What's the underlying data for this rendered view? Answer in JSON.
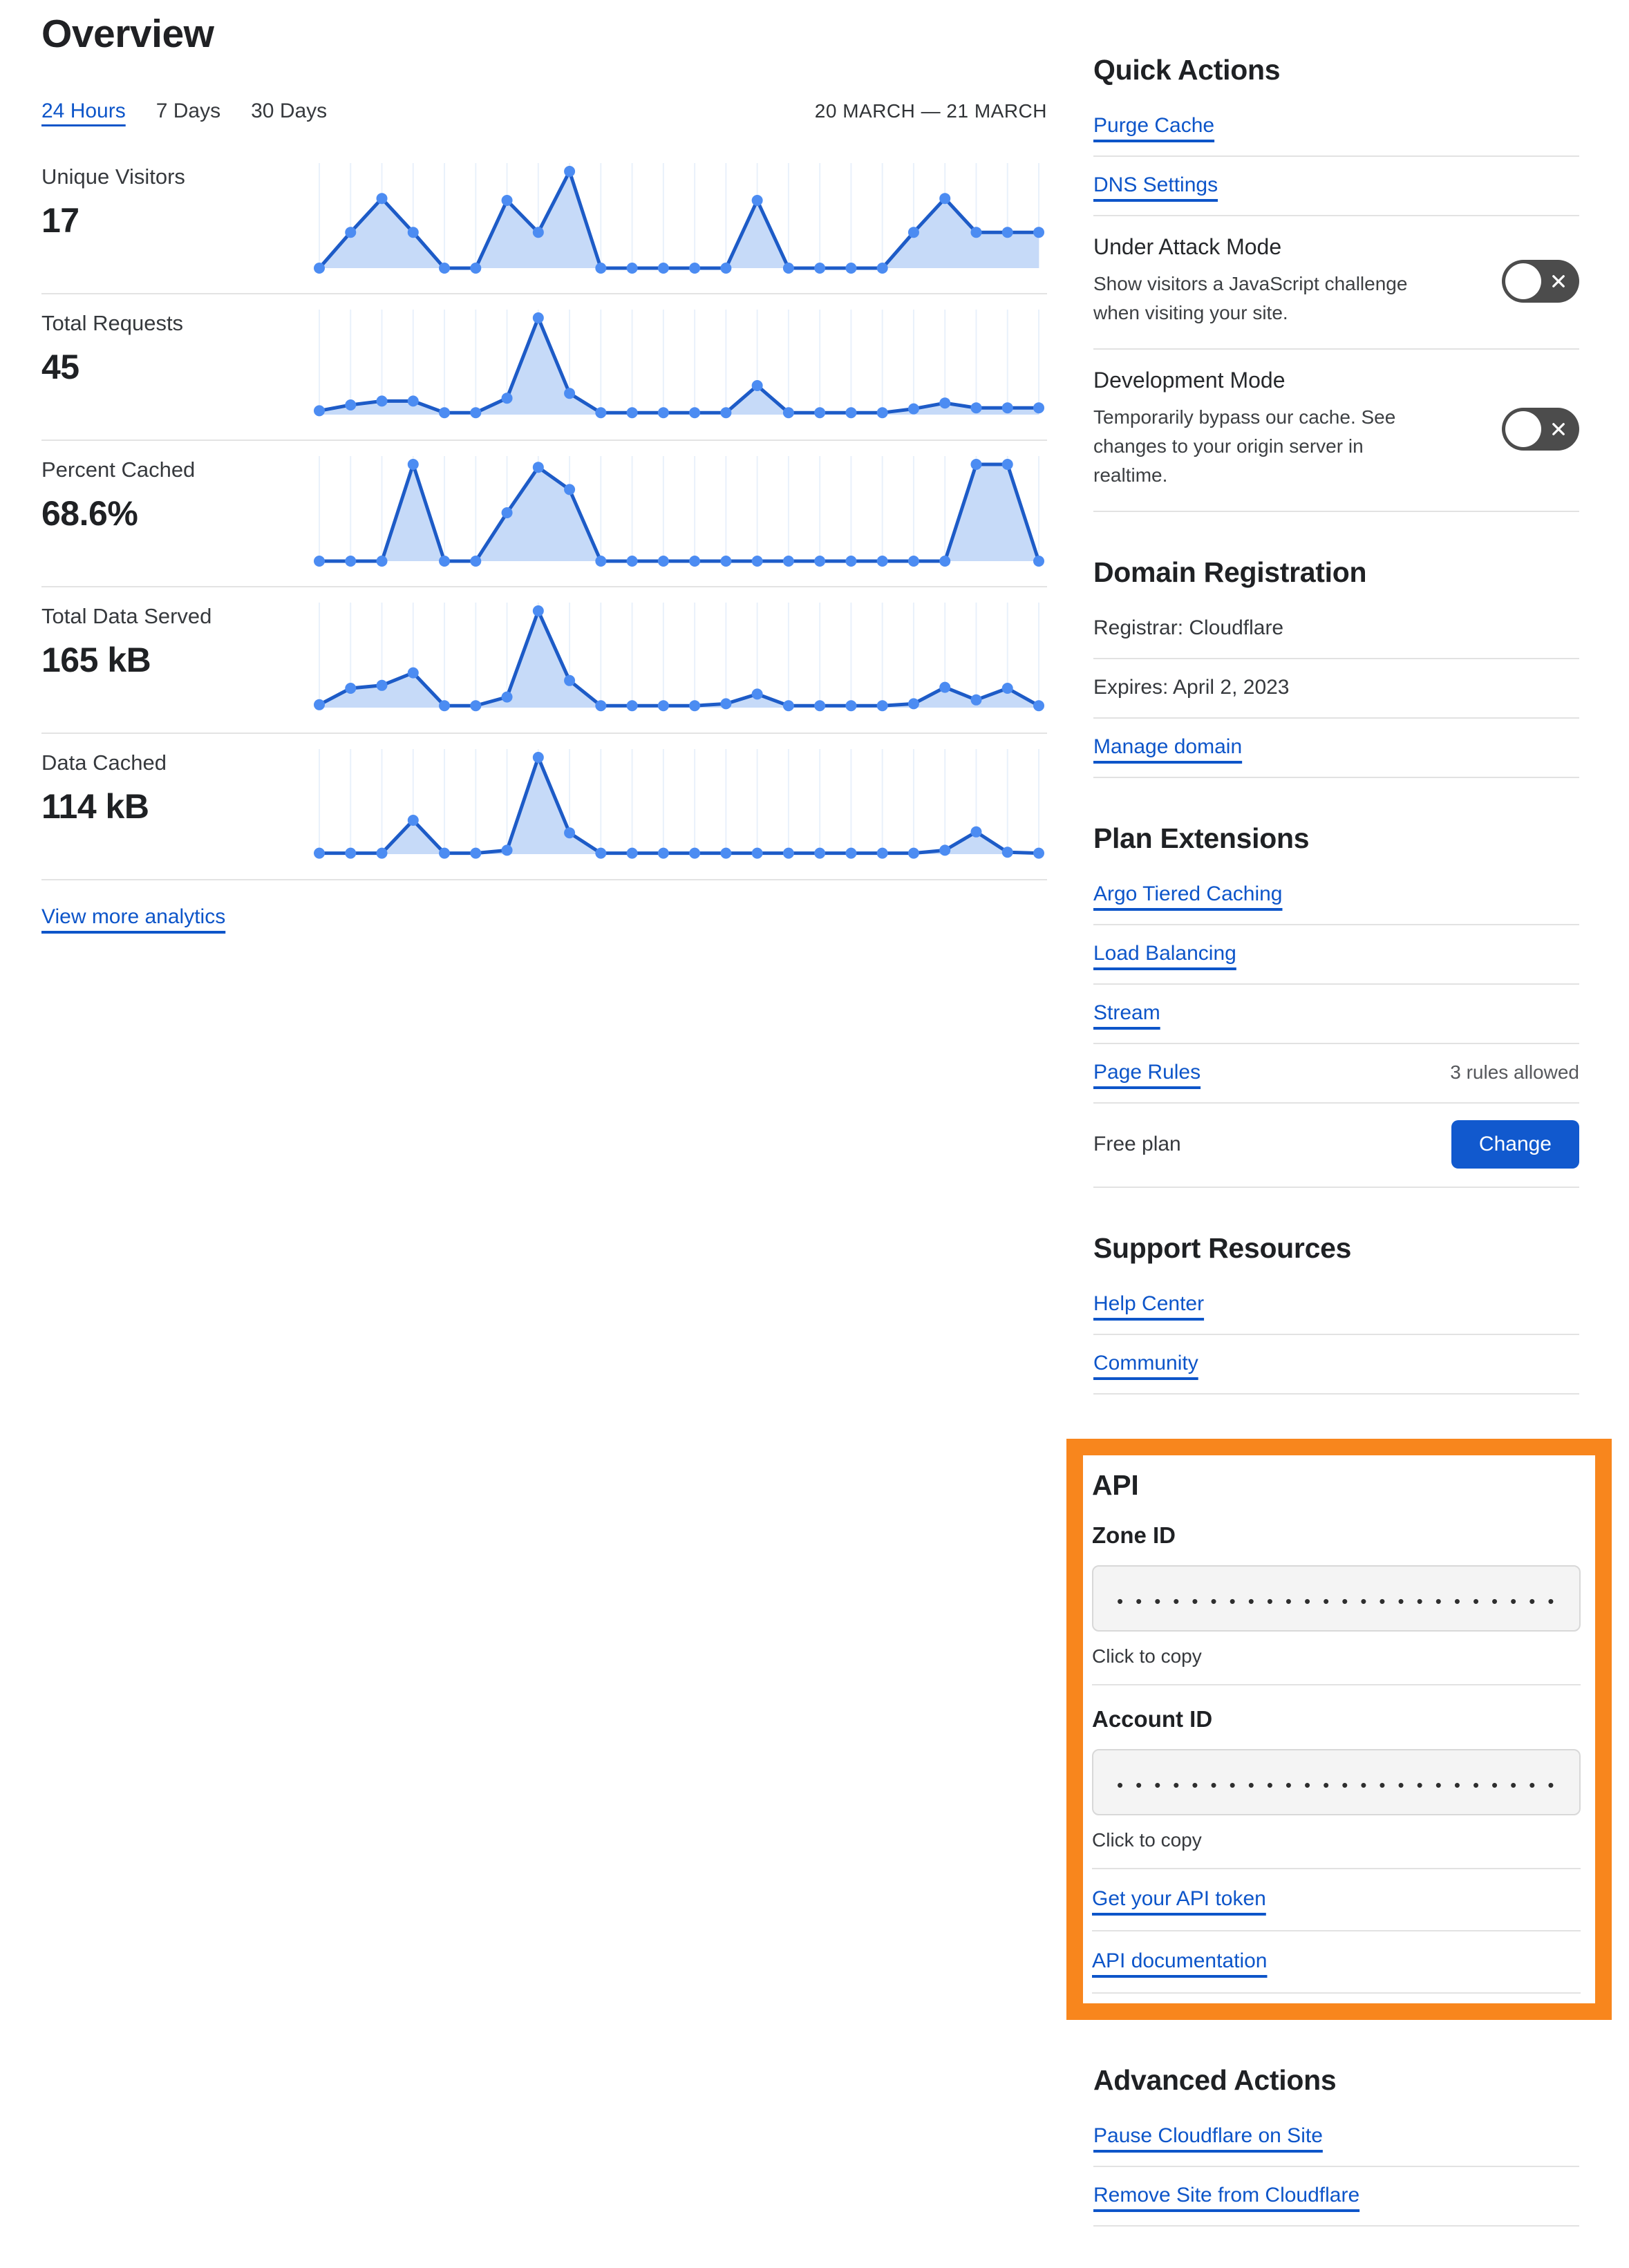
{
  "colors": {
    "link_blue": "#0d55c9",
    "button_blue": "#1159ce",
    "chart_line": "#1d5bc7",
    "chart_dot": "#4c8cf2",
    "chart_fill": "#c6daf8",
    "chart_grid": "#e9f1fb",
    "highlight_orange": "#f8861d",
    "toggle_off_grey": "#4c4c4c"
  },
  "page": {
    "title": "Overview"
  },
  "tabs": {
    "items": [
      "24 Hours",
      "7 Days",
      "30 Days"
    ],
    "active": "24 Hours",
    "date_range": "20 MARCH — 21 MARCH"
  },
  "chart_data": {
    "type": "area",
    "grid": "vertical-lines",
    "points_per_series": 24,
    "value_scale": "relative 0-1 (no axis labels shown)",
    "charts": [
      {
        "label": "Unique Visitors",
        "value": "17",
        "points": [
          0,
          0.37,
          0.72,
          0.37,
          0,
          0,
          0.7,
          0.37,
          1,
          0,
          0,
          0,
          0,
          0,
          0.7,
          0,
          0,
          0,
          0,
          0.37,
          0.72,
          0.37,
          0.37,
          0.37
        ]
      },
      {
        "label": "Total Requests",
        "value": "45",
        "points": [
          0.04,
          0.1,
          0.14,
          0.14,
          0.02,
          0.02,
          0.17,
          1,
          0.22,
          0.02,
          0.02,
          0.02,
          0.02,
          0.02,
          0.3,
          0.02,
          0.02,
          0.02,
          0.02,
          0.06,
          0.12,
          0.07,
          0.07,
          0.07
        ]
      },
      {
        "label": "Percent Cached",
        "value": "68.6%",
        "points": [
          0,
          0,
          0,
          1,
          0,
          0,
          0.5,
          0.97,
          0.74,
          0,
          0,
          0,
          0,
          0,
          0,
          0,
          0,
          0,
          0,
          0,
          0,
          1,
          1,
          0
        ]
      },
      {
        "label": "Total Data Served",
        "value": "165 kB",
        "points": [
          0.03,
          0.2,
          0.23,
          0.36,
          0.02,
          0.02,
          0.11,
          1,
          0.28,
          0.02,
          0.02,
          0.02,
          0.02,
          0.04,
          0.14,
          0.02,
          0.02,
          0.02,
          0.02,
          0.04,
          0.21,
          0.08,
          0.2,
          0.02
        ]
      },
      {
        "label": "Data Cached",
        "value": "114 kB",
        "points": [
          0.01,
          0.01,
          0.01,
          0.35,
          0.01,
          0.01,
          0.04,
          1,
          0.22,
          0.01,
          0.01,
          0.01,
          0.01,
          0.01,
          0.01,
          0.01,
          0.01,
          0.01,
          0.01,
          0.01,
          0.04,
          0.23,
          0.02,
          0.01
        ]
      }
    ]
  },
  "view_more_label": "View more analytics",
  "quick_actions": {
    "heading": "Quick Actions",
    "links": [
      "Purge Cache",
      "DNS Settings"
    ],
    "toggles": [
      {
        "title": "Under Attack Mode",
        "description": "Show visitors a JavaScript challenge when visiting your site.",
        "state": "off"
      },
      {
        "title": "Development Mode",
        "description": "Temporarily bypass our cache. See changes to your origin server in realtime.",
        "state": "off"
      }
    ]
  },
  "domain_registration": {
    "heading": "Domain Registration",
    "registrar": "Registrar: Cloudflare",
    "expires": "Expires: April 2, 2023",
    "manage_link": "Manage domain"
  },
  "plan_extensions": {
    "heading": "Plan Extensions",
    "links": [
      "Argo Tiered Caching",
      "Load Balancing",
      "Stream",
      "Page Rules"
    ],
    "page_rules_note": "3 rules allowed",
    "plan_label": "Free plan",
    "change_button": "Change"
  },
  "support_resources": {
    "heading": "Support Resources",
    "links": [
      "Help Center",
      "Community"
    ]
  },
  "api": {
    "heading": "API",
    "zone_id_label": "Zone ID",
    "account_id_label": "Account ID",
    "masked_value": "•••••••••••••••••••••••••••",
    "copy_hint": "Click to copy",
    "token_link": "Get your API token",
    "docs_link": "API documentation"
  },
  "advanced_actions": {
    "heading": "Advanced Actions",
    "links": [
      "Pause Cloudflare on Site",
      "Remove Site from Cloudflare"
    ]
  }
}
